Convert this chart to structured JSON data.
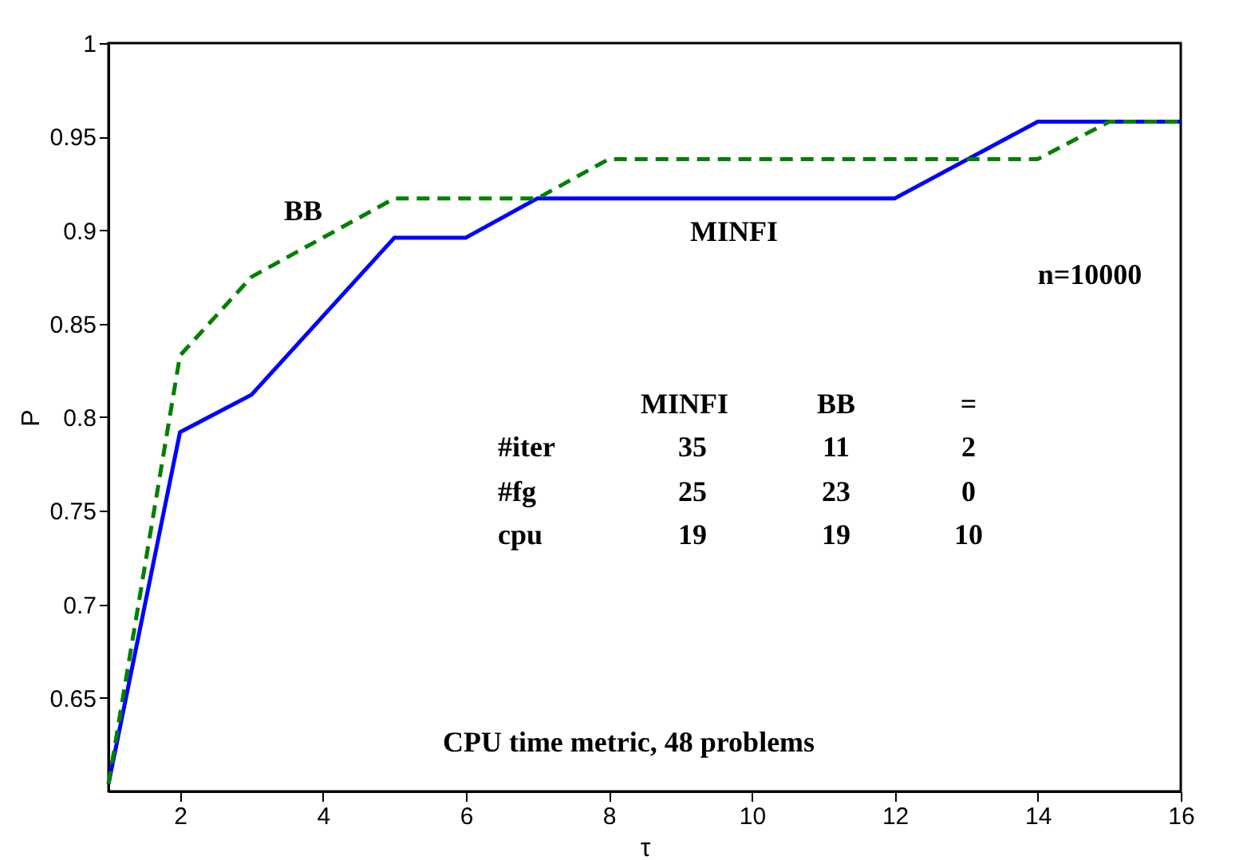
{
  "chart_data": {
    "type": "line",
    "xlabel": "τ",
    "ylabel": "P",
    "xlim": [
      1,
      16
    ],
    "xticks": [
      2,
      4,
      6,
      8,
      10,
      12,
      14,
      16
    ],
    "ylim": [
      0.6,
      1
    ],
    "yticks": [
      0.65,
      0.7,
      0.75,
      0.8,
      0.85,
      0.9,
      0.95,
      1
    ],
    "grid": false,
    "legend": false,
    "marker": "none",
    "series": [
      {
        "name": "MINFI",
        "color": "#0000ff",
        "line_style": "solid",
        "x": [
          1,
          2,
          3,
          5,
          6,
          7,
          12,
          14,
          16
        ],
        "values": [
          0.604,
          0.792,
          0.812,
          0.896,
          0.896,
          0.917,
          0.917,
          0.958,
          0.958
        ]
      },
      {
        "name": "BB",
        "color": "#008000",
        "line_style": "dashed",
        "x": [
          1,
          2,
          3,
          4,
          5,
          7,
          8,
          14,
          15,
          16
        ],
        "values": [
          0.604,
          0.833,
          0.875,
          0.896,
          0.917,
          0.917,
          0.938,
          0.938,
          0.958,
          0.958
        ]
      }
    ],
    "annotations": [
      "n=10000",
      "MINFI",
      "BB",
      "=",
      "#iter",
      "35",
      "11",
      "2",
      "#fg",
      "25",
      "23",
      "0",
      "cpu",
      "19",
      "19",
      "10",
      "CPU time metric, 48 problems"
    ]
  }
}
